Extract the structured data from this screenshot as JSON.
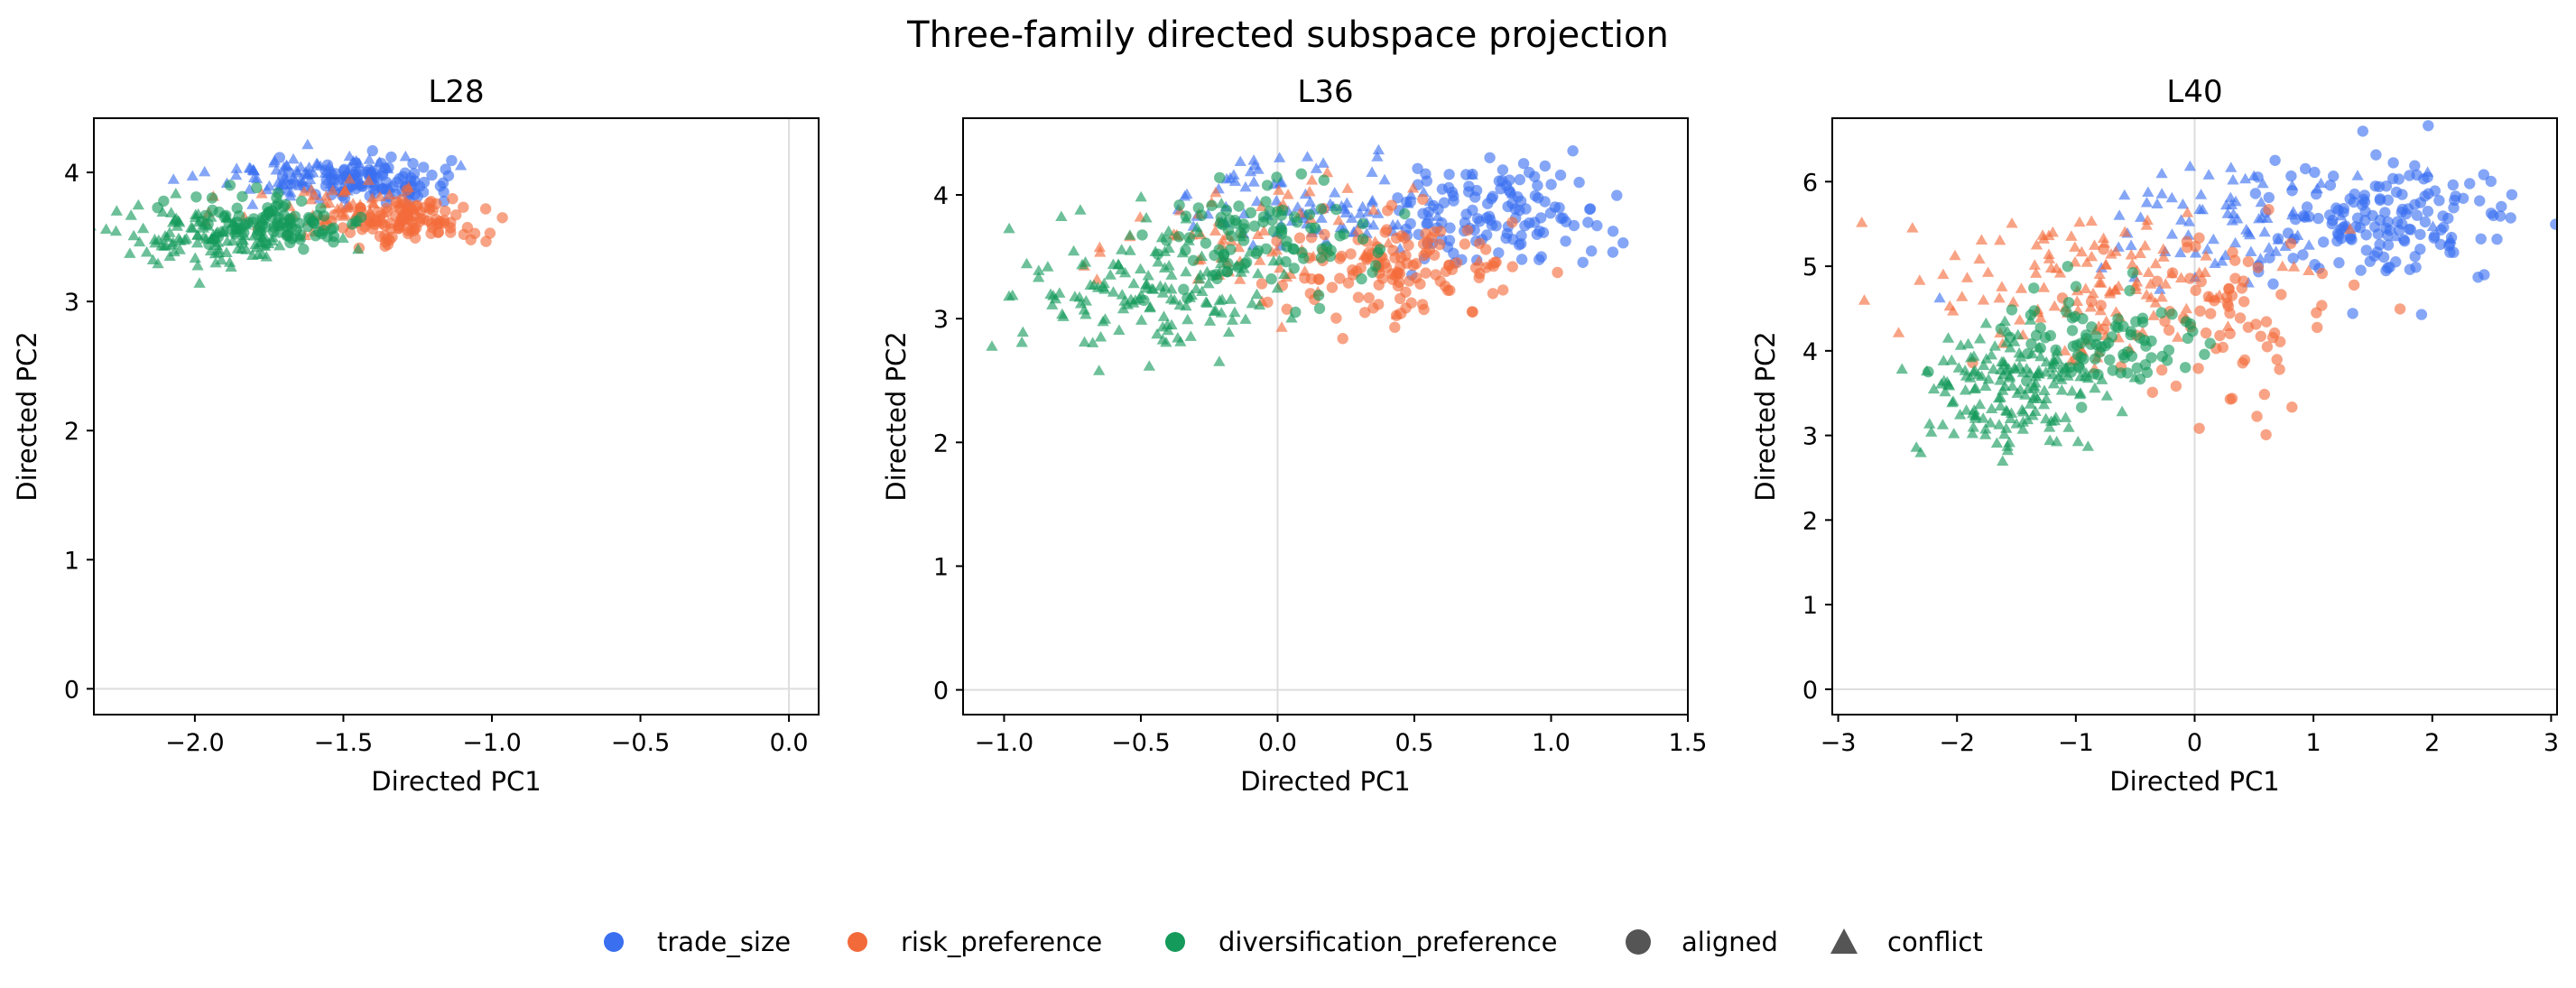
{
  "title": "Three-family directed subspace projection",
  "colors": {
    "trade_size": "#3a6ff0",
    "risk_preference": "#f36a3a",
    "diversification_preference": "#149a5a",
    "marker_key": "#555555",
    "zero_line": "#dddddd"
  },
  "legend": {
    "items": [
      {
        "label": "trade_size",
        "marker": "circle",
        "color": "#3a6ff0"
      },
      {
        "label": "risk_preference",
        "marker": "circle",
        "color": "#f36a3a"
      },
      {
        "label": "diversification_preference",
        "marker": "circle",
        "color": "#149a5a"
      },
      {
        "label": "aligned",
        "marker": "circle",
        "color": "#555555"
      },
      {
        "label": "conflict",
        "marker": "triangle",
        "color": "#555555"
      }
    ]
  },
  "chart_data": [
    {
      "type": "scatter",
      "title": "L28",
      "xlabel": "Directed PC1",
      "ylabel": "Directed PC2",
      "xlim": [
        -2.34,
        0.1
      ],
      "ylim": [
        -0.2,
        4.42
      ],
      "xticks": [
        -2.0,
        -1.5,
        -1.0,
        -0.5,
        0.0
      ],
      "xtick_labels": [
        "−2.0",
        "−1.5",
        "−1.0",
        "−0.5",
        "0.0"
      ],
      "yticks": [
        0,
        1,
        2,
        3,
        4
      ],
      "ytick_labels": [
        "0",
        "1",
        "2",
        "3",
        "4"
      ],
      "grid": false,
      "zero_lines": true,
      "clusters": [
        {
          "family": "trade_size",
          "marker": "circle",
          "n": 100,
          "cx": -1.4,
          "cy": 3.94,
          "sx": 0.13,
          "sy": 0.09
        },
        {
          "family": "trade_size",
          "marker": "triangle",
          "n": 90,
          "cx": -1.62,
          "cy": 3.98,
          "sx": 0.16,
          "sy": 0.09
        },
        {
          "family": "risk_preference",
          "marker": "circle",
          "n": 110,
          "cx": -1.27,
          "cy": 3.62,
          "sx": 0.12,
          "sy": 0.09
        },
        {
          "family": "risk_preference",
          "marker": "triangle",
          "n": 60,
          "cx": -1.5,
          "cy": 3.72,
          "sx": 0.18,
          "sy": 0.12
        },
        {
          "family": "diversification_preference",
          "marker": "circle",
          "n": 100,
          "cx": -1.72,
          "cy": 3.62,
          "sx": 0.15,
          "sy": 0.1
        },
        {
          "family": "diversification_preference",
          "marker": "triangle",
          "n": 120,
          "cx": -1.95,
          "cy": 3.5,
          "sx": 0.17,
          "sy": 0.11
        }
      ]
    },
    {
      "type": "scatter",
      "title": "L36",
      "xlabel": "Directed PC1",
      "ylabel": "Directed PC2",
      "xlim": [
        -1.15,
        1.5
      ],
      "ylim": [
        -0.2,
        4.62
      ],
      "xticks": [
        -1.0,
        -0.5,
        0.0,
        0.5,
        1.0,
        1.5
      ],
      "xtick_labels": [
        "−1.0",
        "−0.5",
        "0.0",
        "0.5",
        "1.0",
        "1.5"
      ],
      "yticks": [
        0,
        1,
        2,
        3,
        4
      ],
      "ytick_labels": [
        "0",
        "1",
        "2",
        "3",
        "4"
      ],
      "grid": false,
      "zero_lines": true,
      "clusters": [
        {
          "family": "trade_size",
          "marker": "circle",
          "n": 130,
          "cx": 0.8,
          "cy": 3.85,
          "sx": 0.2,
          "sy": 0.2
        },
        {
          "family": "trade_size",
          "marker": "triangle",
          "n": 90,
          "cx": 0.15,
          "cy": 3.95,
          "sx": 0.25,
          "sy": 0.2
        },
        {
          "family": "risk_preference",
          "marker": "circle",
          "n": 130,
          "cx": 0.45,
          "cy": 3.4,
          "sx": 0.22,
          "sy": 0.2
        },
        {
          "family": "risk_preference",
          "marker": "triangle",
          "n": 70,
          "cx": -0.1,
          "cy": 3.6,
          "sx": 0.3,
          "sy": 0.25
        },
        {
          "family": "diversification_preference",
          "marker": "circle",
          "n": 100,
          "cx": -0.05,
          "cy": 3.65,
          "sx": 0.2,
          "sy": 0.22
        },
        {
          "family": "diversification_preference",
          "marker": "triangle",
          "n": 150,
          "cx": -0.45,
          "cy": 3.25,
          "sx": 0.24,
          "sy": 0.28
        }
      ]
    },
    {
      "type": "scatter",
      "title": "L40",
      "xlabel": "Directed PC1",
      "ylabel": "Directed PC2",
      "xlim": [
        -3.05,
        3.05
      ],
      "ylim": [
        -0.3,
        6.75
      ],
      "xticks": [
        -3,
        -2,
        -1,
        0,
        1,
        2,
        3
      ],
      "xtick_labels": [
        "−3",
        "−2",
        "−1",
        "0",
        "1",
        "2",
        "3"
      ],
      "yticks": [
        0,
        1,
        2,
        3,
        4,
        5,
        6
      ],
      "ytick_labels": [
        "0",
        "1",
        "2",
        "3",
        "4",
        "5",
        "6"
      ],
      "grid": false,
      "zero_lines": true,
      "clusters": [
        {
          "family": "trade_size",
          "marker": "circle",
          "n": 160,
          "cx": 1.6,
          "cy": 5.5,
          "sx": 0.55,
          "sy": 0.35
        },
        {
          "family": "trade_size",
          "marker": "triangle",
          "n": 80,
          "cx": 0.4,
          "cy": 5.6,
          "sx": 0.65,
          "sy": 0.35
        },
        {
          "family": "risk_preference",
          "marker": "circle",
          "n": 80,
          "cx": 0.2,
          "cy": 4.3,
          "sx": 0.5,
          "sy": 0.5
        },
        {
          "family": "risk_preference",
          "marker": "triangle",
          "n": 130,
          "cx": -0.9,
          "cy": 4.8,
          "sx": 0.7,
          "sy": 0.45
        },
        {
          "family": "diversification_preference",
          "marker": "circle",
          "n": 90,
          "cx": -0.8,
          "cy": 4.1,
          "sx": 0.45,
          "sy": 0.35
        },
        {
          "family": "diversification_preference",
          "marker": "triangle",
          "n": 170,
          "cx": -1.55,
          "cy": 3.5,
          "sx": 0.4,
          "sy": 0.4
        }
      ]
    }
  ]
}
